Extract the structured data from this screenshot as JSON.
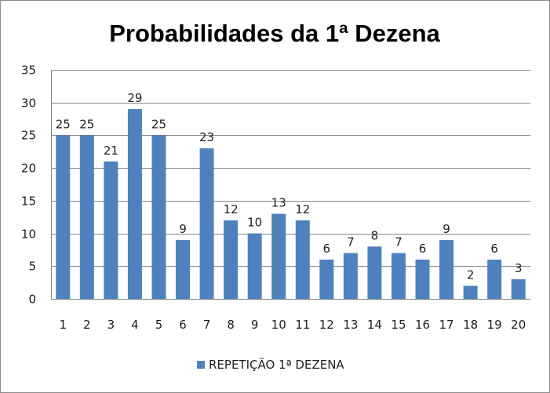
{
  "chart_data": {
    "type": "bar",
    "title": "Probabilidades da 1ª Dezena",
    "xlabel": "",
    "ylabel": "",
    "categories": [
      "1",
      "2",
      "3",
      "4",
      "5",
      "6",
      "7",
      "8",
      "9",
      "10",
      "11",
      "12",
      "13",
      "14",
      "15",
      "16",
      "17",
      "18",
      "19",
      "20"
    ],
    "series": [
      {
        "name": "REPETIÇÃO 1ª DEZENA",
        "values": [
          25,
          25,
          21,
          29,
          25,
          9,
          23,
          12,
          10,
          13,
          12,
          6,
          7,
          8,
          7,
          6,
          9,
          2,
          6,
          3
        ],
        "color": "#4f81bd"
      }
    ],
    "ylim": [
      0,
      35
    ],
    "yticks": [
      0,
      5,
      10,
      15,
      20,
      25,
      30,
      35
    ],
    "grid": true,
    "legend": "bottom",
    "data_labels": true
  }
}
